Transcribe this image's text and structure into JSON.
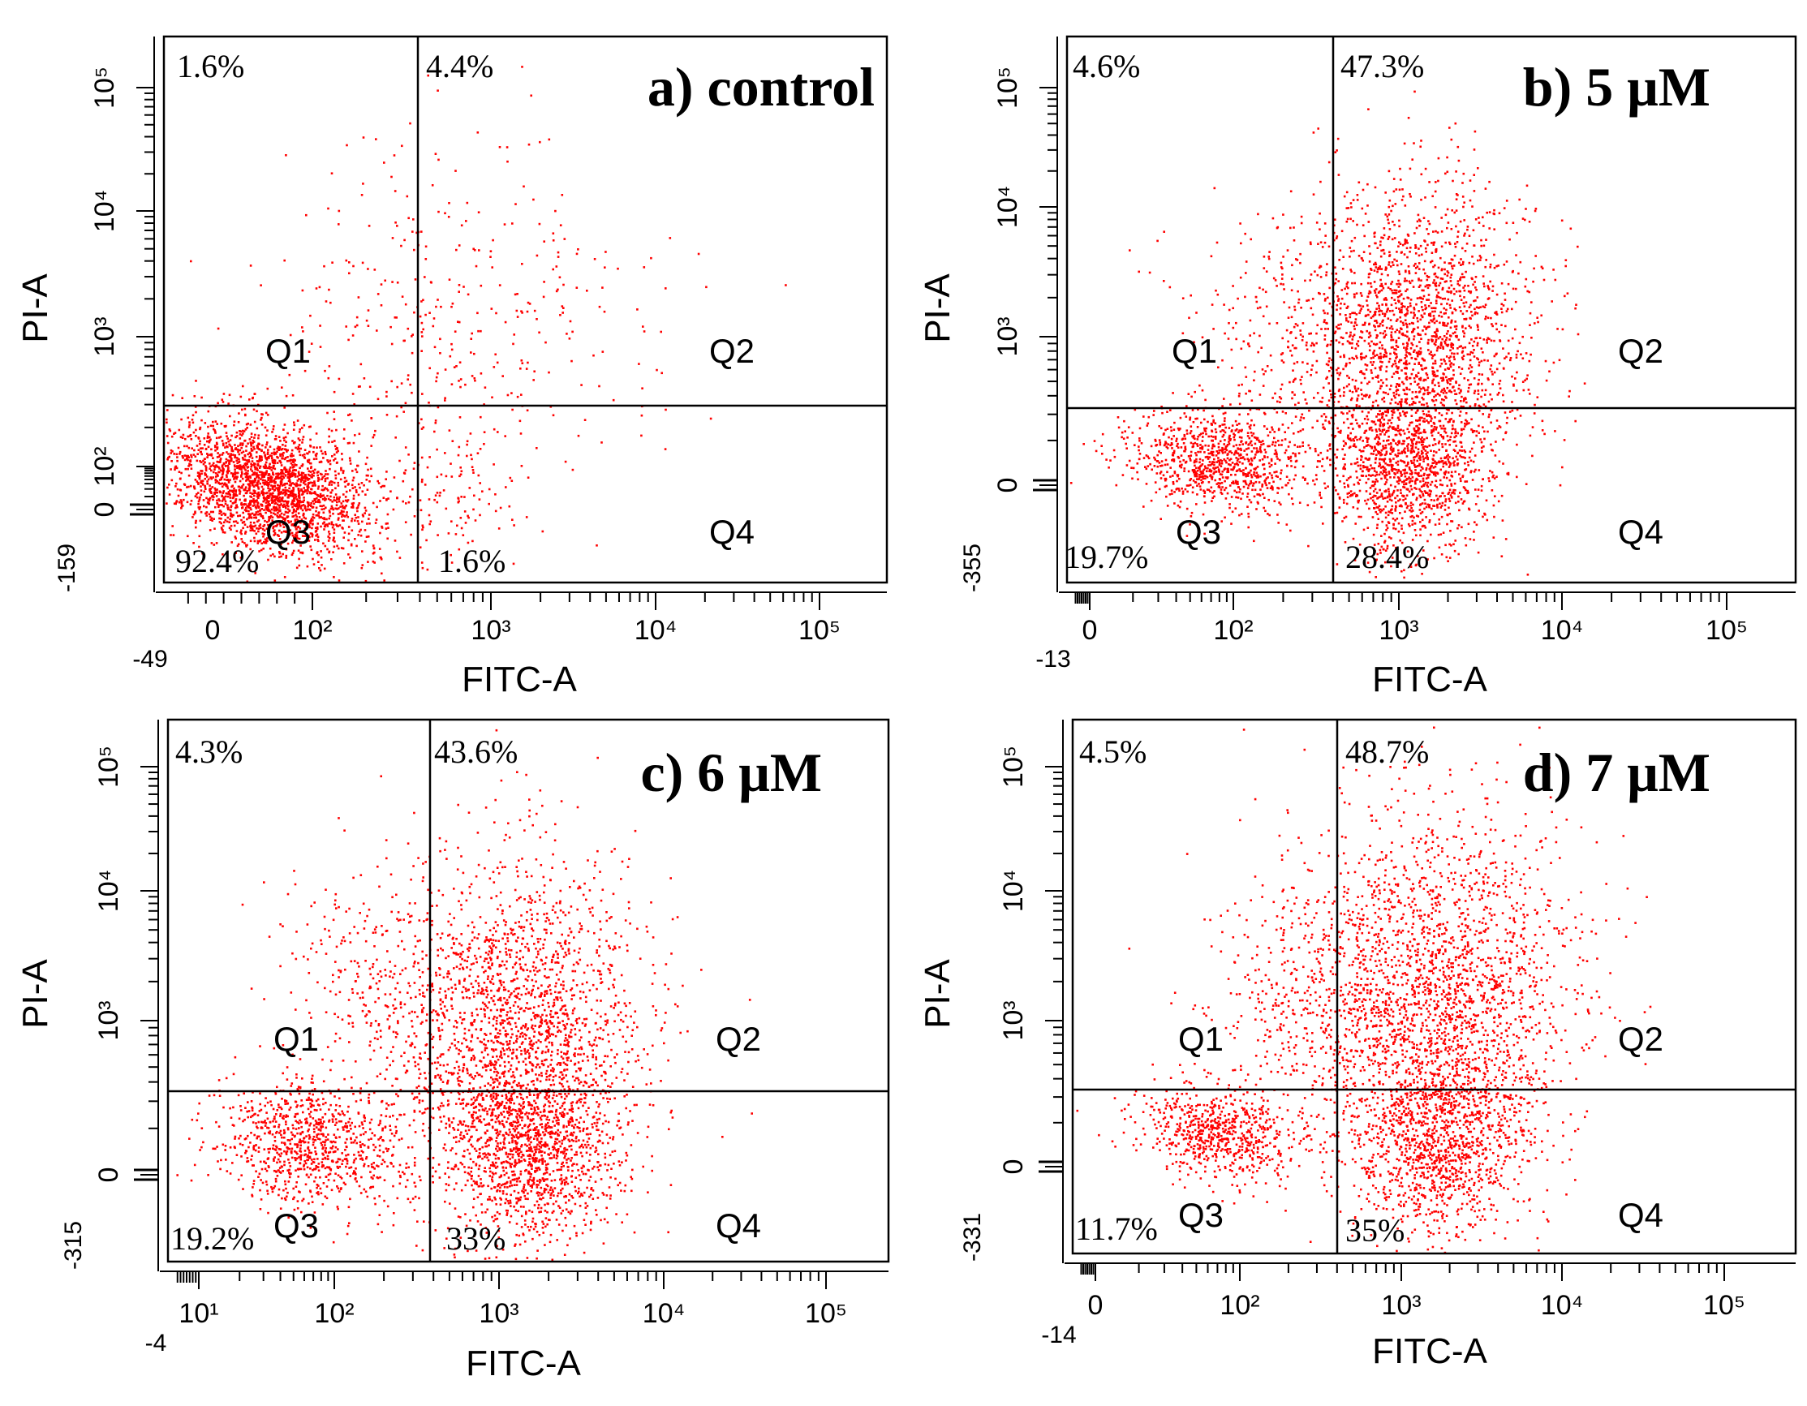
{
  "chart_data": [
    {
      "type": "scatter",
      "panel_label": "a) control",
      "xlabel": "FITC-A",
      "ylabel": "PI-A",
      "x_min_label": "-49",
      "x_tick_labels": [
        "0",
        "10²",
        "10³",
        "10⁴",
        "10⁵"
      ],
      "y_min_label": "-159",
      "y_tick_labels": [
        "0",
        "10²",
        "10³",
        "10⁴",
        "10⁵"
      ],
      "quadrants": [
        {
          "name": "Q1",
          "label": "Q1",
          "percent": "1.6%"
        },
        {
          "name": "Q2",
          "label": "Q2",
          "percent": "4.4%"
        },
        {
          "name": "Q3",
          "label": "Q3",
          "percent": "92.4%"
        },
        {
          "name": "Q4",
          "label": "Q4",
          "percent": "1.6%"
        }
      ]
    },
    {
      "type": "scatter",
      "panel_label": "b) 5 μM",
      "xlabel": "FITC-A",
      "ylabel": "PI-A",
      "x_min_label": "-13",
      "x_tick_labels": [
        "0",
        "10²",
        "10³",
        "10⁴",
        "10⁵"
      ],
      "y_min_label": "-355",
      "y_tick_labels": [
        "0",
        "10³",
        "10⁴",
        "10⁵"
      ],
      "quadrants": [
        {
          "name": "Q1",
          "label": "Q1",
          "percent": "4.6%"
        },
        {
          "name": "Q2",
          "label": "Q2",
          "percent": "47.3%"
        },
        {
          "name": "Q3",
          "label": "Q3",
          "percent": "19.7%"
        },
        {
          "name": "Q4",
          "label": "Q4",
          "percent": "28.4%"
        }
      ]
    },
    {
      "type": "scatter",
      "panel_label": "c) 6 μM",
      "xlabel": "FITC-A",
      "ylabel": "PI-A",
      "x_min_label": "-4",
      "x_tick_labels": [
        "10¹",
        "10²",
        "10³",
        "10⁴",
        "10⁵"
      ],
      "y_min_label": "-315",
      "y_tick_labels": [
        "0",
        "10³",
        "10⁴",
        "10⁵"
      ],
      "quadrants": [
        {
          "name": "Q1",
          "label": "Q1",
          "percent": "4.3%"
        },
        {
          "name": "Q2",
          "label": "Q2",
          "percent": "43.6%"
        },
        {
          "name": "Q3",
          "label": "Q3",
          "percent": "19.2%"
        },
        {
          "name": "Q4",
          "label": "Q4",
          "percent": "33%"
        }
      ]
    },
    {
      "type": "scatter",
      "panel_label": "d) 7 μM",
      "xlabel": "FITC-A",
      "ylabel": "PI-A",
      "x_min_label": "-14",
      "x_tick_labels": [
        "0",
        "10²",
        "10³",
        "10⁴",
        "10⁵"
      ],
      "y_min_label": "-331",
      "y_tick_labels": [
        "0",
        "10³",
        "10⁴",
        "10⁵"
      ],
      "quadrants": [
        {
          "name": "Q1",
          "label": "Q1",
          "percent": "4.5%"
        },
        {
          "name": "Q2",
          "label": "Q2",
          "percent": "48.7%"
        },
        {
          "name": "Q3",
          "label": "Q3",
          "percent": "11.7%"
        },
        {
          "name": "Q4",
          "label": "Q4",
          "percent": "35%"
        }
      ]
    }
  ],
  "colors": {
    "dots": "#ff0000",
    "axes": "#000000",
    "background": "#ffffff"
  }
}
